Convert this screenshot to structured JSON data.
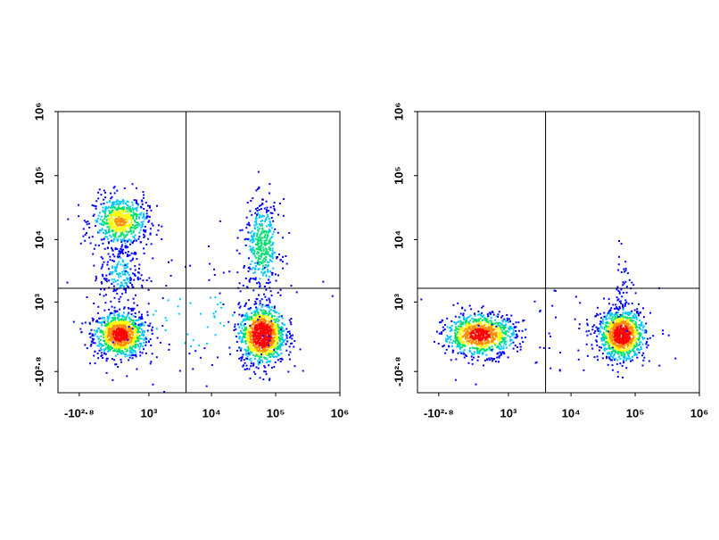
{
  "chart_data": [
    {
      "type": "density",
      "scale": "biexponential",
      "xlim": [
        -1500,
        1000000
      ],
      "ylim": [
        -1500,
        1000000
      ],
      "xticks": [
        {
          "value": -631,
          "label": "-10²·⁸"
        },
        {
          "value": 1000,
          "label": "10³"
        },
        {
          "value": 10000,
          "label": "10⁴"
        },
        {
          "value": 100000,
          "label": "10⁵"
        },
        {
          "value": 1000000,
          "label": "10⁶"
        }
      ],
      "yticks": [
        {
          "value": -631,
          "label": "-10²·⁸"
        },
        {
          "value": 1000,
          "label": "10³"
        },
        {
          "value": 10000,
          "label": "10⁴"
        },
        {
          "value": 100000,
          "label": "10⁵"
        },
        {
          "value": 1000000,
          "label": "10⁶"
        }
      ],
      "gate": {
        "x": 4000,
        "y": 1700
      },
      "colormap": [
        "#0000ff",
        "#00c8ff",
        "#00e070",
        "#ffff00",
        "#ff8c00",
        "#ff0000"
      ],
      "populations": [
        {
          "x": 200,
          "y": 150,
          "x_range": [
            -300,
            900
          ],
          "y_range": [
            -250,
            700
          ],
          "count": 900
        },
        {
          "x": 200,
          "y": 20000,
          "x_range": [
            -200,
            1200
          ],
          "y_range": [
            8000,
            50000
          ],
          "count": 600
        },
        {
          "x": 200,
          "y": 3000,
          "x_range": [
            -100,
            800
          ],
          "y_range": [
            1000,
            10000
          ],
          "count": 200
        },
        {
          "x": 60000,
          "y": 150,
          "x_range": [
            25000,
            130000
          ],
          "y_range": [
            -400,
            900
          ],
          "count": 1100
        },
        {
          "x": 60000,
          "y": 8000,
          "x_range": [
            30000,
            110000
          ],
          "y_range": [
            1500,
            40000
          ],
          "count": 400
        },
        {
          "x": 5000,
          "y": 500,
          "x_range": [
            -800,
            500000
          ],
          "y_range": [
            -600,
            50000
          ],
          "count": 150
        }
      ]
    },
    {
      "type": "density",
      "scale": "biexponential",
      "xlim": [
        -1500,
        1000000
      ],
      "ylim": [
        -1500,
        1000000
      ],
      "xticks": [
        {
          "value": -631,
          "label": "-10²·⁸"
        },
        {
          "value": 1000,
          "label": "10³"
        },
        {
          "value": 10000,
          "label": "10⁴"
        },
        {
          "value": 100000,
          "label": "10⁵"
        },
        {
          "value": 1000000,
          "label": "10⁶"
        }
      ],
      "yticks": [
        {
          "value": -631,
          "label": "-10²·⁸"
        },
        {
          "value": 1000,
          "label": "10³"
        },
        {
          "value": 10000,
          "label": "10⁴"
        },
        {
          "value": 100000,
          "label": "10⁵"
        },
        {
          "value": 1000000,
          "label": "10⁶"
        }
      ],
      "gate": {
        "x": 4000,
        "y": 1700
      },
      "colormap": [
        "#0000ff",
        "#00c8ff",
        "#00e070",
        "#ffff00",
        "#ff8c00",
        "#ff0000"
      ],
      "populations": [
        {
          "x": 200,
          "y": 150,
          "x_range": [
            -400,
            1500
          ],
          "y_range": [
            -250,
            600
          ],
          "count": 900
        },
        {
          "x": 60000,
          "y": 150,
          "x_range": [
            25000,
            130000
          ],
          "y_range": [
            -300,
            800
          ],
          "count": 1000
        },
        {
          "x": 60000,
          "y": 2000,
          "x_range": [
            40000,
            90000
          ],
          "y_range": [
            600,
            8000
          ],
          "count": 40
        },
        {
          "x": 5000,
          "y": 200,
          "x_range": [
            -500,
            300000
          ],
          "y_range": [
            -400,
            5000
          ],
          "count": 60
        }
      ]
    }
  ]
}
